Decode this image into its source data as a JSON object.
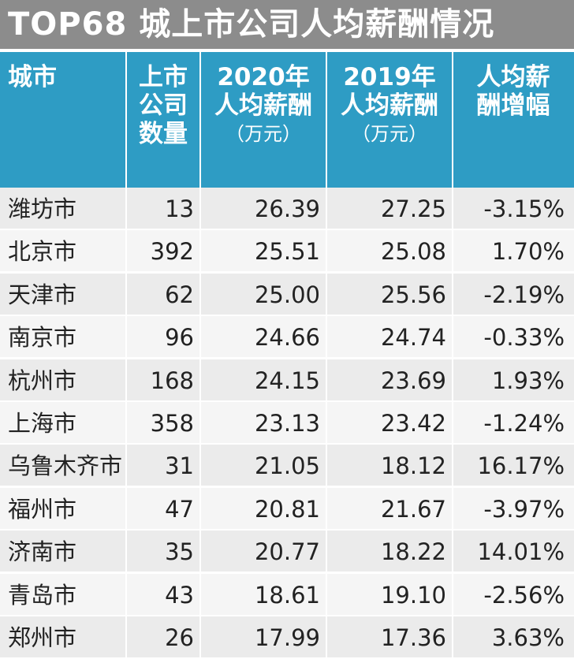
{
  "title": "TOP68 城上市公司人均薪酬情况",
  "header": {
    "city": "城市",
    "count": "上市\n公司\n数量",
    "salary_2020": "2020年\n人均薪酬",
    "salary_2019": "2019年\n人均薪酬",
    "unit": "（万元）",
    "growth": "人均薪\n酬增幅"
  },
  "colors": {
    "title_bar": "#8c8c8c",
    "header": "#2e9cc4",
    "row_odd": "#ebebeb",
    "row_even": "#f5f5f5"
  },
  "chart_data": {
    "type": "table",
    "title": "TOP68 城上市公司人均薪酬情况",
    "columns": [
      "城市",
      "上市公司数量",
      "2020年人均薪酬（万元）",
      "2019年人均薪酬（万元）",
      "人均薪酬增幅"
    ],
    "rows": [
      [
        "潍坊市",
        "13",
        "26.39",
        "27.25",
        "-3.15%"
      ],
      [
        "北京市",
        "392",
        "25.51",
        "25.08",
        "1.70%"
      ],
      [
        "天津市",
        "62",
        "25.00",
        "25.56",
        "-2.19%"
      ],
      [
        "南京市",
        "96",
        "24.66",
        "24.74",
        "-0.33%"
      ],
      [
        "杭州市",
        "168",
        "24.15",
        "23.69",
        "1.93%"
      ],
      [
        "上海市",
        "358",
        "23.13",
        "23.42",
        "-1.24%"
      ],
      [
        "乌鲁木齐市",
        "31",
        "21.05",
        "18.12",
        "16.17%"
      ],
      [
        "福州市",
        "47",
        "20.81",
        "21.67",
        "-3.97%"
      ],
      [
        "济南市",
        "35",
        "20.77",
        "18.22",
        "14.01%"
      ],
      [
        "青岛市",
        "43",
        "18.61",
        "19.10",
        "-2.56%"
      ],
      [
        "郑州市",
        "26",
        "17.99",
        "17.36",
        "3.63%"
      ]
    ]
  }
}
